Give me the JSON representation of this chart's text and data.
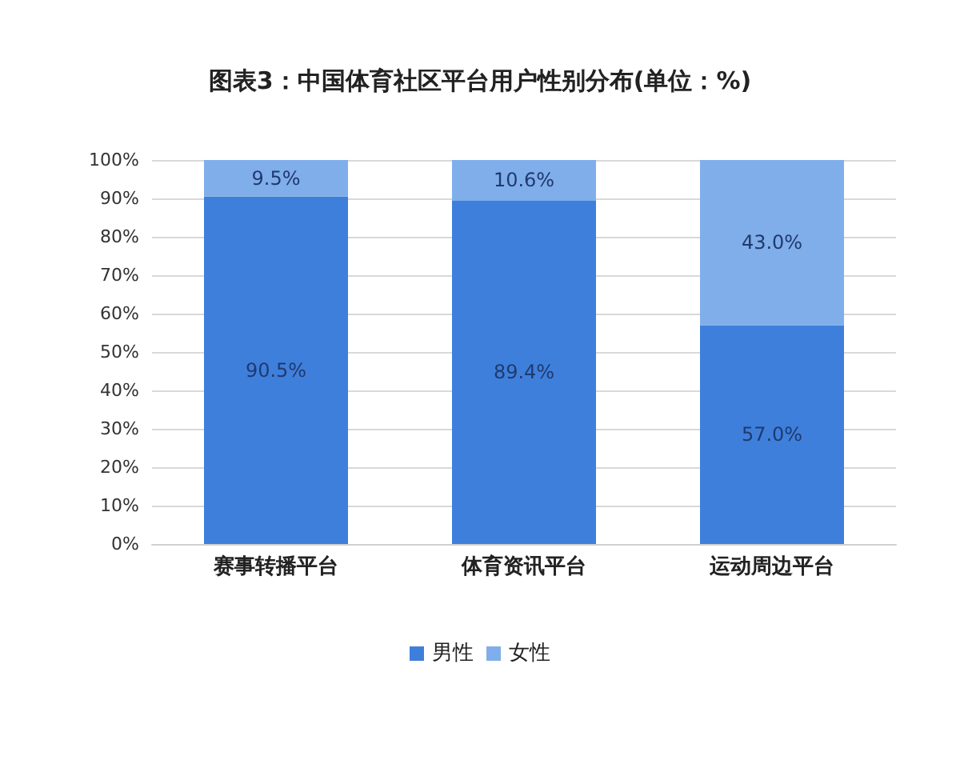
{
  "chart_data": {
    "type": "bar",
    "title": "图表3：中国体育社区平台用户性别分布(单位：%)",
    "categories": [
      "赛事转播平台",
      "体育资讯平台",
      "运动周边平台"
    ],
    "stacked": true,
    "series": [
      {
        "name": "男性",
        "color": "#3f7fdc",
        "values": [
          90.5,
          89.4,
          57.0
        ],
        "value_labels": [
          "90.5%",
          "89.4%",
          "57.0%"
        ]
      },
      {
        "name": "女性",
        "color": "#80aeea",
        "values": [
          9.5,
          10.6,
          43.0
        ],
        "value_labels": [
          "9.5%",
          "10.6%",
          "43.0%"
        ]
      }
    ],
    "ylim": [
      0,
      100
    ],
    "yticks": [
      {
        "value": 0,
        "label": "0%"
      },
      {
        "value": 10,
        "label": "10%"
      },
      {
        "value": 20,
        "label": "20%"
      },
      {
        "value": 30,
        "label": "30%"
      },
      {
        "value": 40,
        "label": "40%"
      },
      {
        "value": 50,
        "label": "50%"
      },
      {
        "value": 60,
        "label": "60%"
      },
      {
        "value": 70,
        "label": "70%"
      },
      {
        "value": 80,
        "label": "80%"
      },
      {
        "value": 90,
        "label": "90%"
      },
      {
        "value": 100,
        "label": "100%"
      }
    ],
    "grid": "y",
    "legend": "bottom"
  }
}
